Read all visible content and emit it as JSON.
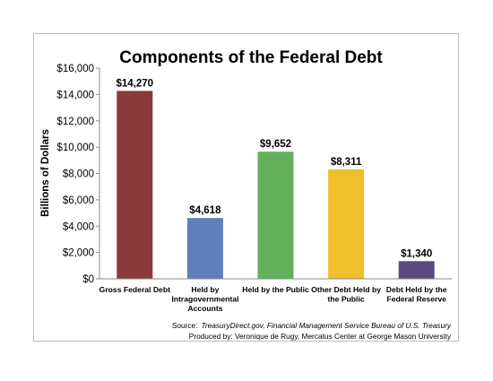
{
  "chart_data": {
    "type": "bar",
    "title": "Components of the Federal Debt",
    "xlabel": "",
    "ylabel": "Billions of Dollars",
    "ylim": [
      0,
      16000
    ],
    "yticks": [
      "$0",
      "$2,000",
      "$4,000",
      "$6,000",
      "$8,000",
      "$10,000",
      "$12,000",
      "$14,000",
      "$16,000"
    ],
    "ytick_values": [
      0,
      2000,
      4000,
      6000,
      8000,
      10000,
      12000,
      14000,
      16000
    ],
    "grid": false,
    "categories": [
      [
        "Gross Federal Debt"
      ],
      [
        "Held by",
        "Intragovernmental",
        "Accounts"
      ],
      [
        "Held by the Public"
      ],
      [
        "Other Debt Held by",
        "the Public"
      ],
      [
        "Debt Held by the",
        "Federal Reserve"
      ]
    ],
    "values": [
      14270,
      4618,
      9652,
      8311,
      1340
    ],
    "data_labels": [
      "$14,270",
      "$4,618",
      "$9,652",
      "$8,311",
      "$1,340"
    ],
    "colors": [
      "#8a3a3b",
      "#5f7fbd",
      "#63b05a",
      "#f0bf2d",
      "#5a4a82"
    ]
  },
  "source": {
    "prefix": "Source:",
    "italic": "TreasuryDirect.gov, Financial Management Service  Bureau of U.S. Treasury",
    "produced": "Produced by: Veronique de Rugy, Mercatus Center at George Mason University"
  }
}
